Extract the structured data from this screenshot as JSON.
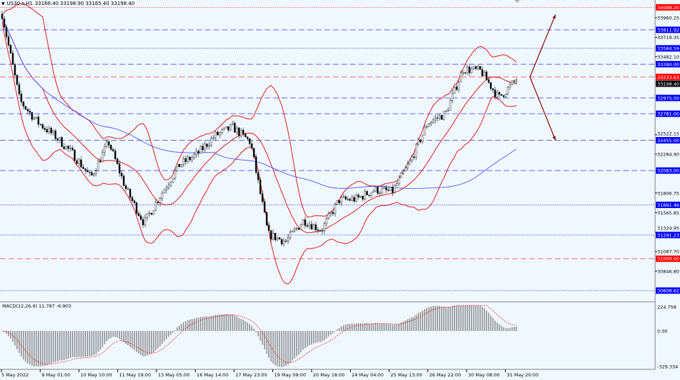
{
  "header": {
    "symbol": "US30.s,H1",
    "ohlc": "33168.40 33198.90 33165.40 33198.40",
    "menu_icon": "triangle-down-icon"
  },
  "macd_label": "MACD(12,26,9) 11.787 -6.903",
  "colors": {
    "background": "#f0f8ff",
    "bollinger": "#e00000",
    "ma": "#4040ff",
    "candle": "#000000",
    "level_blue": "#0000ff",
    "level_red": "#ff0000",
    "arrow": "#8b0000",
    "histogram": "#808080",
    "signal": "#e00000"
  },
  "chart_data": {
    "type": "candlestick",
    "symbol": "US30.s",
    "timeframe": "H1",
    "ylim": [
      30510,
      34180
    ],
    "close_path": [
      34004,
      32939,
      32677,
      32503,
      32285,
      31997,
      32433,
      31848,
      31438,
      31805,
      32154,
      32285,
      32512,
      32616,
      32433,
      31299,
      31211,
      31473,
      31351,
      31718,
      31735,
      31848,
      31822,
      32189,
      32669,
      32782,
      33332,
      33306,
      32974,
      33198
    ],
    "last_price": "33198.40",
    "price_ticks": [
      "33960.25",
      "33719.35",
      "33482.10",
      "32522.15",
      "32284.90",
      "31806.75",
      "31565.85",
      "31324.95",
      "31087.70",
      "30846.80"
    ],
    "time_ticks": [
      "5 May 2022",
      "9 May 01:00",
      "10 May 10:00",
      "11 May 19:00",
      "13 May 05:00",
      "16 May 14:00",
      "17 May 23:00",
      "19 May 09:00",
      "20 May 18:00",
      "24 May 04:00",
      "25 May 13:00",
      "26 May 22:00",
      "30 May 08:00",
      "31 May 20:00"
    ],
    "levels": [
      {
        "price": "34088.20",
        "color": "red",
        "style": "dotted"
      },
      {
        "price": "33811.92",
        "color": "blue",
        "style": "dashed"
      },
      {
        "price": "33584.59",
        "color": "blue",
        "style": "dotted"
      },
      {
        "price": "33390.00",
        "color": "blue",
        "style": "dashed"
      },
      {
        "price": "33233.63",
        "color": "red",
        "style": "dashed"
      },
      {
        "price": "32975.00",
        "color": "blue",
        "style": "dashed"
      },
      {
        "price": "32781.00",
        "color": "blue",
        "style": "dashed"
      },
      {
        "price": "32455.00",
        "color": "blue",
        "style": "dashed"
      },
      {
        "price": "32083.00",
        "color": "blue",
        "style": "dashed"
      },
      {
        "price": "31661.46",
        "color": "blue",
        "style": "dotted"
      },
      {
        "price": "31291.23",
        "color": "blue",
        "style": "dotted"
      },
      {
        "price": "31000.00",
        "color": "red",
        "style": "dashed"
      },
      {
        "price": "30608.62",
        "color": "blue",
        "style": "dotted"
      }
    ],
    "scenario_arrows": [
      {
        "from": 33233,
        "to": 34000,
        "direction": "up"
      },
      {
        "from": 33233,
        "to": 32455,
        "direction": "down"
      }
    ],
    "indicators": [
      "Bollinger Bands",
      "Moving Average",
      "MACD(12,26,9)"
    ],
    "macd": {
      "ticks": [
        "224.758",
        "0.00",
        "-329.334"
      ],
      "ylim": [
        -329.334,
        224.758
      ],
      "value": 11.787,
      "signal": -6.903
    }
  }
}
